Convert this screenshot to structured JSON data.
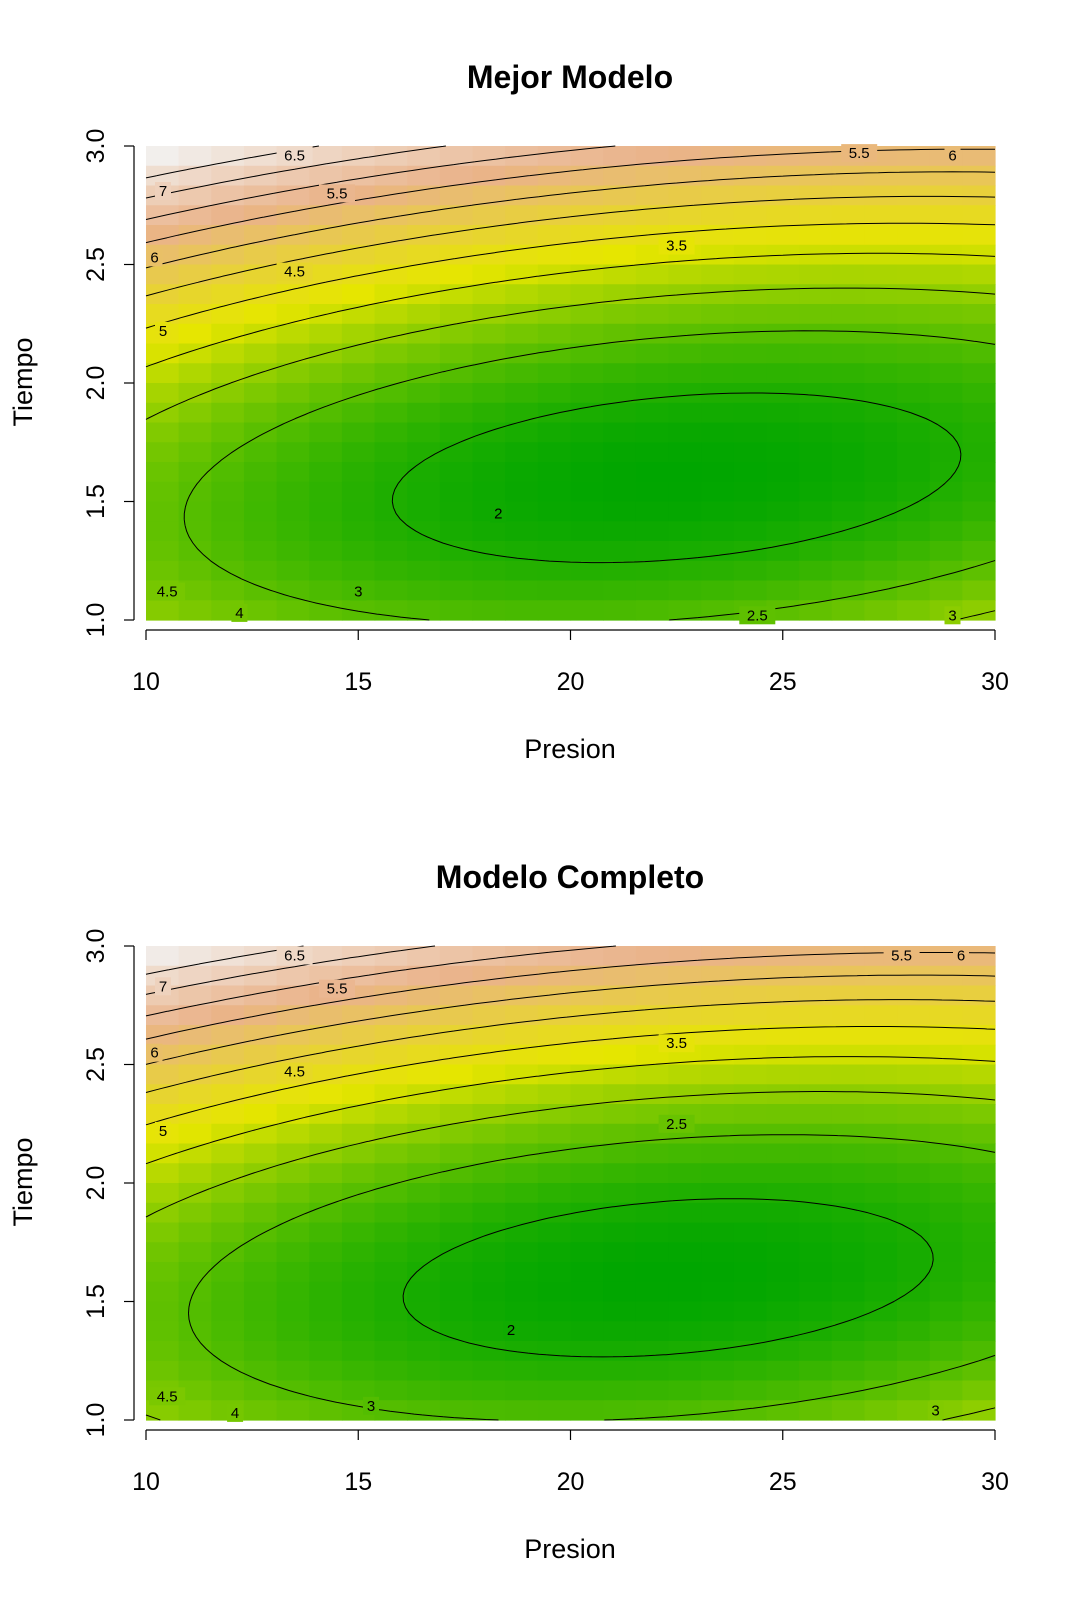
{
  "chart_data": [
    {
      "type": "heatmap",
      "subtype": "contour",
      "title": "Mejor Modelo",
      "xlabel": "Presion",
      "ylabel": "Tiempo",
      "xlim": [
        10,
        30
      ],
      "ylim": [
        1.0,
        3.0
      ],
      "x_ticks": [
        "10",
        "15",
        "20",
        "25",
        "30"
      ],
      "y_ticks": [
        "1.0",
        "1.5",
        "2.0",
        "2.5",
        "3.0"
      ],
      "grid": false,
      "colormap": [
        "#00a600",
        "#e6e600",
        "#eab38a",
        "#f2f2f2"
      ],
      "optimum": {
        "x": 22.5,
        "y": 1.6,
        "z": 1.75
      },
      "contour_levels": [
        "2",
        "2.5",
        "3",
        "3.5",
        "4",
        "4.5",
        "5",
        "5.5",
        "6",
        "6.5",
        "7"
      ],
      "contour_labels": [
        {
          "text": "2",
          "x": 18.3,
          "y": 1.45
        },
        {
          "text": "2.5",
          "x": 24.4,
          "y": 1.02
        },
        {
          "text": "3",
          "x": 15.0,
          "y": 1.12
        },
        {
          "text": "3",
          "x": 29.0,
          "y": 1.02
        },
        {
          "text": "3.5",
          "x": 22.5,
          "y": 2.58
        },
        {
          "text": "4",
          "x": 12.2,
          "y": 1.03
        },
        {
          "text": "4.5",
          "x": 10.5,
          "y": 1.12
        },
        {
          "text": "4.5",
          "x": 13.5,
          "y": 2.47
        },
        {
          "text": "5",
          "x": 10.4,
          "y": 2.22
        },
        {
          "text": "5.5",
          "x": 14.5,
          "y": 2.8
        },
        {
          "text": "5.5",
          "x": 26.8,
          "y": 2.97
        },
        {
          "text": "6",
          "x": 10.2,
          "y": 2.53
        },
        {
          "text": "6",
          "x": 29.0,
          "y": 2.96
        },
        {
          "text": "6.5",
          "x": 13.5,
          "y": 2.96
        },
        {
          "text": "7",
          "x": 10.4,
          "y": 2.81
        }
      ]
    },
    {
      "type": "heatmap",
      "subtype": "contour",
      "title": "Modelo Completo",
      "xlabel": "Presion",
      "ylabel": "Tiempo",
      "xlim": [
        10,
        30
      ],
      "ylim": [
        1.0,
        3.0
      ],
      "x_ticks": [
        "10",
        "15",
        "20",
        "25",
        "30"
      ],
      "y_ticks": [
        "1.0",
        "1.5",
        "2.0",
        "2.5",
        "3.0"
      ],
      "grid": false,
      "colormap": [
        "#00a600",
        "#e6e600",
        "#eab38a",
        "#f2f2f2"
      ],
      "optimum": {
        "x": 22.3,
        "y": 1.6,
        "z": 1.78
      },
      "contour_levels": [
        "2",
        "2.5",
        "3",
        "3.5",
        "4",
        "4.5",
        "5",
        "5.5",
        "6",
        "6.5",
        "7"
      ],
      "contour_labels": [
        {
          "text": "2",
          "x": 18.6,
          "y": 1.38
        },
        {
          "text": "2.5",
          "x": 22.5,
          "y": 2.25
        },
        {
          "text": "3",
          "x": 15.3,
          "y": 1.06
        },
        {
          "text": "3",
          "x": 28.6,
          "y": 1.04
        },
        {
          "text": "3.5",
          "x": 22.5,
          "y": 2.59
        },
        {
          "text": "4",
          "x": 12.1,
          "y": 1.03
        },
        {
          "text": "4.5",
          "x": 10.5,
          "y": 1.1
        },
        {
          "text": "4.5",
          "x": 13.5,
          "y": 2.47
        },
        {
          "text": "5",
          "x": 10.4,
          "y": 2.22
        },
        {
          "text": "5.5",
          "x": 14.5,
          "y": 2.82
        },
        {
          "text": "5.5",
          "x": 27.8,
          "y": 2.96
        },
        {
          "text": "6",
          "x": 10.2,
          "y": 2.55
        },
        {
          "text": "6",
          "x": 29.2,
          "y": 2.96
        },
        {
          "text": "6.5",
          "x": 13.5,
          "y": 2.96
        },
        {
          "text": "7",
          "x": 10.4,
          "y": 2.83
        }
      ]
    }
  ]
}
